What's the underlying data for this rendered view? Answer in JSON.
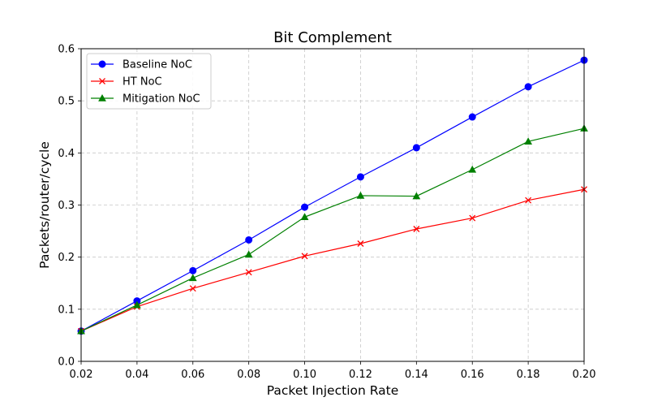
{
  "chart_data": {
    "type": "line",
    "title": "Bit Complement",
    "xlabel": "Packet Injection Rate",
    "ylabel": "Packets/router/cycle",
    "xlim": [
      0.02,
      0.2
    ],
    "ylim": [
      0.0,
      0.6
    ],
    "x_ticks": [
      "0.02",
      "0.04",
      "0.06",
      "0.08",
      "0.10",
      "0.12",
      "0.14",
      "0.16",
      "0.18",
      "0.20"
    ],
    "y_ticks": [
      "0.0",
      "0.1",
      "0.2",
      "0.3",
      "0.4",
      "0.5",
      "0.6"
    ],
    "grid": true,
    "legend_position": "top-left",
    "x": [
      0.02,
      0.04,
      0.06,
      0.08,
      0.1,
      0.12,
      0.14,
      0.16,
      0.18,
      0.2
    ],
    "series": [
      {
        "name": "Baseline NoC",
        "color": "#0000ff",
        "marker": "circle",
        "values": [
          0.058,
          0.116,
          0.174,
          0.233,
          0.296,
          0.354,
          0.41,
          0.469,
          0.527,
          0.578
        ]
      },
      {
        "name": "HT NoC",
        "color": "#ff0000",
        "marker": "x",
        "values": [
          0.058,
          0.105,
          0.14,
          0.171,
          0.202,
          0.226,
          0.254,
          0.275,
          0.309,
          0.33
        ]
      },
      {
        "name": "Mitigation NoC",
        "color": "#008000",
        "marker": "triangle",
        "values": [
          0.058,
          0.108,
          0.16,
          0.205,
          0.277,
          0.318,
          0.317,
          0.368,
          0.422,
          0.447
        ]
      }
    ]
  }
}
